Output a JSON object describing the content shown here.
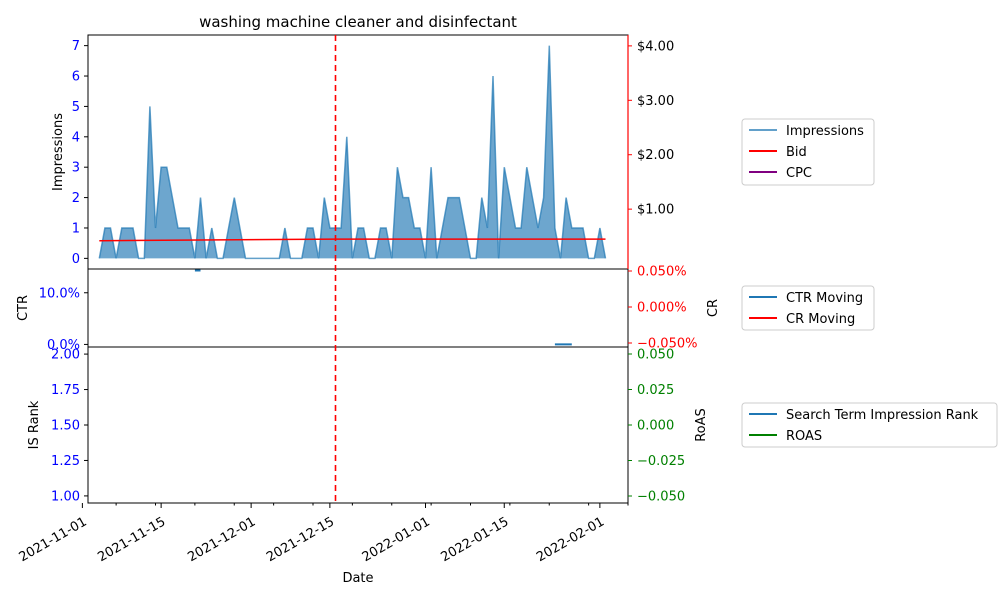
{
  "chart_data": [
    {
      "type": "area",
      "title": "washing machine cleaner and disinfectant",
      "ylabel": "Impressions",
      "y2label": "",
      "ylim": [
        -0.35,
        7.35
      ],
      "yticks": [
        "0",
        "1",
        "2",
        "3",
        "4",
        "5",
        "6",
        "7"
      ],
      "y2lim": [
        -0.1,
        4.2
      ],
      "y2ticks": [
        "$1.00",
        "$2.00",
        "$3.00",
        "$4.00"
      ],
      "y2tick_values": [
        1,
        2,
        3,
        4
      ],
      "series": [
        {
          "name": "Impressions",
          "color": "#1f77b4",
          "x": [
            "2021-11-04",
            "2021-11-05",
            "2021-11-06",
            "2021-11-07",
            "2021-11-08",
            "2021-11-09",
            "2021-11-10",
            "2021-11-11",
            "2021-11-12",
            "2021-11-13",
            "2021-11-14",
            "2021-11-15",
            "2021-11-16",
            "2021-11-17",
            "2021-11-18",
            "2021-11-19",
            "2021-11-20",
            "2021-11-21",
            "2021-11-22",
            "2021-11-23",
            "2021-11-24",
            "2021-11-25",
            "2021-11-26",
            "2021-11-27",
            "2021-11-28",
            "2021-11-29",
            "2021-11-30",
            "2021-12-01",
            "2021-12-02",
            "2021-12-03",
            "2021-12-04",
            "2021-12-05",
            "2021-12-06",
            "2021-12-07",
            "2021-12-08",
            "2021-12-09",
            "2021-12-10",
            "2021-12-11",
            "2021-12-12",
            "2021-12-13",
            "2021-12-14",
            "2021-12-15",
            "2021-12-16",
            "2021-12-17",
            "2021-12-18",
            "2021-12-19",
            "2021-12-20",
            "2021-12-21",
            "2021-12-22",
            "2021-12-23",
            "2021-12-24",
            "2021-12-25",
            "2021-12-26",
            "2021-12-27",
            "2021-12-28",
            "2021-12-29",
            "2021-12-30",
            "2021-12-31",
            "2022-01-01",
            "2022-01-02",
            "2022-01-03",
            "2022-01-04",
            "2022-01-05",
            "2022-01-06",
            "2022-01-07",
            "2022-01-08",
            "2022-01-09",
            "2022-01-10",
            "2022-01-11",
            "2022-01-12",
            "2022-01-13",
            "2022-01-14",
            "2022-01-15",
            "2022-01-16",
            "2022-01-17",
            "2022-01-18",
            "2022-01-19",
            "2022-01-20",
            "2022-01-21",
            "2022-01-22",
            "2022-01-23",
            "2022-01-24",
            "2022-01-25",
            "2022-01-26",
            "2022-01-27",
            "2022-01-28",
            "2022-01-29",
            "2022-01-30",
            "2022-01-31",
            "2022-02-01",
            "2022-02-02"
          ],
          "values": [
            0,
            1,
            1,
            0,
            1,
            1,
            1,
            0,
            0,
            5,
            1,
            3,
            3,
            2,
            1,
            1,
            1,
            0,
            2,
            0,
            1,
            0,
            0,
            1,
            2,
            1,
            0,
            0,
            0,
            0,
            0,
            0,
            0,
            1,
            0,
            0,
            0,
            1,
            1,
            0,
            2,
            1,
            1,
            1,
            4,
            0,
            1,
            1,
            0,
            0,
            1,
            1,
            0,
            3,
            2,
            2,
            1,
            1,
            0,
            3,
            0,
            1,
            2,
            2,
            2,
            1,
            0,
            0,
            2,
            1,
            6,
            0,
            3,
            2,
            1,
            1,
            3,
            2,
            1,
            2,
            7,
            1,
            0,
            2,
            1,
            1,
            1,
            0,
            0,
            1,
            0
          ]
        },
        {
          "name": "Bid",
          "color": "#ff0000",
          "x": [
            "2021-11-04",
            "2021-12-16",
            "2022-02-02"
          ],
          "values": [
            0.42,
            0.45,
            0.45
          ]
        },
        {
          "name": "CPC",
          "color": "#800080",
          "x": [],
          "values": []
        }
      ],
      "vline": {
        "x": "2021-12-16",
        "color": "#ff0000"
      },
      "legend": "right"
    },
    {
      "type": "line",
      "ylabel": "CTR",
      "y2label": "CR",
      "ylim": [
        -0.5,
        14.6
      ],
      "yticks": [
        "0.0%",
        "10.0%"
      ],
      "y2ticks": [
        "−0.050%",
        "0.000%",
        "0.050%"
      ],
      "series": [
        {
          "name": "CTR Moving",
          "color": "#1f77b4",
          "segments": [
            {
              "x": [
                "2021-11-21",
                "2021-11-22"
              ],
              "values": [
                14.3,
                14.3
              ]
            },
            {
              "x": [
                "2022-01-24",
                "2022-01-27"
              ],
              "values": [
                0,
                0
              ]
            }
          ]
        },
        {
          "name": "CR Moving",
          "color": "#ff0000",
          "segments": []
        }
      ],
      "legend": "right"
    },
    {
      "type": "line",
      "ylabel": "IS Rank",
      "y2label": "RoAS",
      "ylim": [
        0.95,
        2.05
      ],
      "yticks": [
        "1.00",
        "1.25",
        "1.50",
        "1.75",
        "2.00"
      ],
      "y2ticks": [
        "−0.050",
        "−0.025",
        "0.000",
        "0.025",
        "0.050"
      ],
      "series": [
        {
          "name": "Search Term Impression Rank",
          "color": "#1f77b4",
          "values": []
        },
        {
          "name": "ROAS",
          "color": "#008000",
          "values": []
        }
      ],
      "legend": "right"
    }
  ],
  "xaxis": {
    "label": "Date",
    "ticks": [
      "2021-11-01",
      "2021-11-15",
      "2021-12-01",
      "2021-12-15",
      "2022-01-01",
      "2022-01-15",
      "2022-02-01"
    ],
    "range": [
      "2021-11-02",
      "2022-02-06"
    ]
  }
}
